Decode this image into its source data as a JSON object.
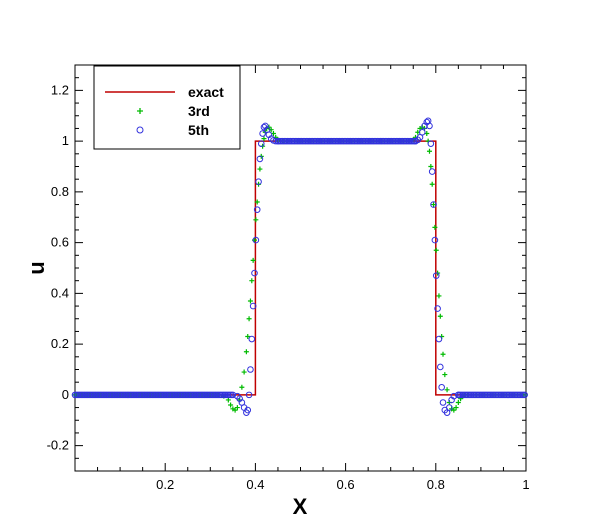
{
  "chart_data": {
    "type": "line",
    "xlabel": "X",
    "ylabel": "u",
    "xlim": [
      0,
      1
    ],
    "ylim": [
      -0.3,
      1.3
    ],
    "xticks": [
      0.2,
      0.4,
      0.6,
      0.8,
      1
    ],
    "xtick_labels": [
      "0.2",
      "0.4",
      "0.6",
      "0.8",
      "1"
    ],
    "yticks": [
      -0.2,
      0,
      0.2,
      0.4,
      0.6,
      0.8,
      1,
      1.2
    ],
    "ytick_labels": [
      "-0.2",
      "0",
      "0.2",
      "0.4",
      "0.6",
      "0.8",
      "1",
      "1.2"
    ],
    "grid": false,
    "legend_position": "top-left",
    "series": [
      {
        "name": "exact",
        "style": "line",
        "color": "#c00000",
        "x": [
          0,
          0.4,
          0.4,
          0.8,
          0.8,
          1
        ],
        "y": [
          0,
          0,
          1,
          1,
          0,
          0
        ]
      },
      {
        "name": "3rd",
        "style": "plus",
        "color": "#00bb00",
        "x": [
          0.32,
          0.33,
          0.34,
          0.345,
          0.35,
          0.355,
          0.36,
          0.365,
          0.37,
          0.375,
          0.38,
          0.383,
          0.386,
          0.389,
          0.392,
          0.395,
          0.398,
          0.401,
          0.404,
          0.407,
          0.41,
          0.413,
          0.416,
          0.419,
          0.422,
          0.425,
          0.43,
          0.435,
          0.44,
          0.445,
          0.45,
          0.455,
          0.46,
          0.465,
          0.47,
          0.48,
          0.49,
          0.74,
          0.75,
          0.755,
          0.76,
          0.765,
          0.77,
          0.775,
          0.78,
          0.783,
          0.786,
          0.789,
          0.792,
          0.795,
          0.798,
          0.801,
          0.804,
          0.807,
          0.81,
          0.813,
          0.816,
          0.82,
          0.825,
          0.83,
          0.835,
          0.84,
          0.845,
          0.85,
          0.855,
          0.86,
          0.865,
          0.87,
          0.88,
          0.89
        ],
        "y": [
          0,
          -0.005,
          -0.02,
          -0.04,
          -0.055,
          -0.06,
          -0.05,
          -0.02,
          0.03,
          0.09,
          0.17,
          0.23,
          0.3,
          0.37,
          0.45,
          0.53,
          0.61,
          0.69,
          0.76,
          0.83,
          0.89,
          0.94,
          0.98,
          1.01,
          1.035,
          1.05,
          1.055,
          1.045,
          1.03,
          1.015,
          1.005,
          1.0,
          1.0,
          1.0,
          1.0,
          1.0,
          1.0,
          1.0,
          1.005,
          1.015,
          1.035,
          1.05,
          1.055,
          1.05,
          1.03,
          1.0,
          0.96,
          0.9,
          0.83,
          0.75,
          0.66,
          0.57,
          0.48,
          0.39,
          0.31,
          0.23,
          0.16,
          0.08,
          0.02,
          -0.03,
          -0.055,
          -0.06,
          -0.05,
          -0.03,
          -0.015,
          -0.005,
          0,
          0,
          0,
          0
        ]
      },
      {
        "name": "5th",
        "style": "circle",
        "color": "#3333dd",
        "x": [
          0.35,
          0.36,
          0.365,
          0.37,
          0.375,
          0.38,
          0.383,
          0.386,
          0.389,
          0.392,
          0.395,
          0.398,
          0.401,
          0.404,
          0.407,
          0.41,
          0.413,
          0.416,
          0.419,
          0.422,
          0.426,
          0.43,
          0.435,
          0.44,
          0.445,
          0.45,
          0.755,
          0.76,
          0.765,
          0.77,
          0.775,
          0.78,
          0.783,
          0.786,
          0.789,
          0.792,
          0.795,
          0.798,
          0.801,
          0.804,
          0.807,
          0.81,
          0.813,
          0.816,
          0.82,
          0.825,
          0.83,
          0.835,
          0.84,
          0.85
        ],
        "y": [
          0,
          -0.005,
          -0.015,
          -0.03,
          -0.05,
          -0.07,
          -0.06,
          0.0,
          0.1,
          0.22,
          0.35,
          0.48,
          0.61,
          0.73,
          0.84,
          0.93,
          0.99,
          1.03,
          1.055,
          1.06,
          1.045,
          1.025,
          1.01,
          1.003,
          1.0,
          1.0,
          1.0,
          1.005,
          1.015,
          1.035,
          1.06,
          1.075,
          1.08,
          1.06,
          0.99,
          0.88,
          0.75,
          0.61,
          0.47,
          0.34,
          0.22,
          0.11,
          0.03,
          -0.03,
          -0.06,
          -0.07,
          -0.05,
          -0.02,
          -0.005,
          0
        ]
      }
    ]
  }
}
